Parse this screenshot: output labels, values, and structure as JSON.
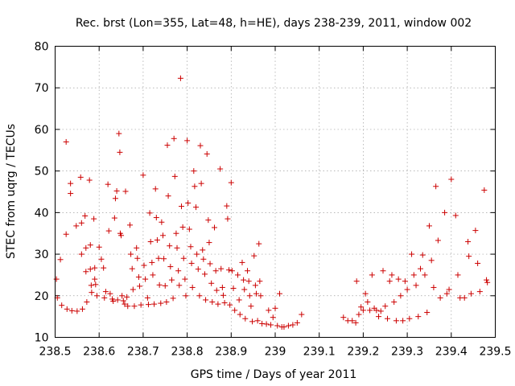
{
  "chart_data": {
    "type": "scatter",
    "title": "Rec. brst (Lon=355, Lat=48, h=HE), days 238-239, 2011, window 002",
    "xlabel": "GPS time / Days of year 2011",
    "ylabel": "STEC from uqrg / TECUs",
    "xlim": [
      238.5,
      239.5
    ],
    "ylim": [
      10,
      80
    ],
    "x_ticks": [
      "238.5",
      "238.6",
      "238.7",
      "238.8",
      "238.9",
      "239",
      "239.1",
      "239.2",
      "239.3",
      "239.4",
      "239.5"
    ],
    "y_ticks": [
      "10",
      "20",
      "30",
      "40",
      "50",
      "60",
      "70",
      "80"
    ],
    "grid": true,
    "marker": "+",
    "color": "#cc0000",
    "series": [
      {
        "name": "STEC",
        "points": [
          [
            238.503,
            24.0
          ],
          [
            238.505,
            19.5
          ],
          [
            238.512,
            28.7
          ],
          [
            238.515,
            17.7
          ],
          [
            238.525,
            57.0
          ],
          [
            238.525,
            34.8
          ],
          [
            238.527,
            16.8
          ],
          [
            238.535,
            47.0
          ],
          [
            238.535,
            44.6
          ],
          [
            238.538,
            16.4
          ],
          [
            238.548,
            36.8
          ],
          [
            238.55,
            16.3
          ],
          [
            238.558,
            48.5
          ],
          [
            238.56,
            37.5
          ],
          [
            238.56,
            30.0
          ],
          [
            238.562,
            16.8
          ],
          [
            238.568,
            39.2
          ],
          [
            238.57,
            31.5
          ],
          [
            238.57,
            25.8
          ],
          [
            238.572,
            18.5
          ],
          [
            238.578,
            47.8
          ],
          [
            238.58,
            32.2
          ],
          [
            238.58,
            26.4
          ],
          [
            238.582,
            22.5
          ],
          [
            238.583,
            20.8
          ],
          [
            238.588,
            38.5
          ],
          [
            238.59,
            26.7
          ],
          [
            238.59,
            24.0
          ],
          [
            238.592,
            22.7
          ],
          [
            238.595,
            20.0
          ],
          [
            238.6,
            31.7
          ],
          [
            238.605,
            28.8
          ],
          [
            238.61,
            26.7
          ],
          [
            238.612,
            19.5
          ],
          [
            238.615,
            21.0
          ],
          [
            238.62,
            46.8
          ],
          [
            238.622,
            35.6
          ],
          [
            238.625,
            20.5
          ],
          [
            238.63,
            19.2
          ],
          [
            238.632,
            18.7
          ],
          [
            238.635,
            38.7
          ],
          [
            238.637,
            43.4
          ],
          [
            238.64,
            45.2
          ],
          [
            238.642,
            19.0
          ],
          [
            238.645,
            59.0
          ],
          [
            238.647,
            54.5
          ],
          [
            238.648,
            35.0
          ],
          [
            238.65,
            34.5
          ],
          [
            238.652,
            20.0
          ],
          [
            238.655,
            18.8
          ],
          [
            238.658,
            18.0
          ],
          [
            238.66,
            45.1
          ],
          [
            238.663,
            19.7
          ],
          [
            238.665,
            17.5
          ],
          [
            238.67,
            37.0
          ],
          [
            238.672,
            30.0
          ],
          [
            238.675,
            26.5
          ],
          [
            238.677,
            21.5
          ],
          [
            238.68,
            17.5
          ],
          [
            238.685,
            31.5
          ],
          [
            238.687,
            29.0
          ],
          [
            238.69,
            24.5
          ],
          [
            238.692,
            22.3
          ],
          [
            238.695,
            17.8
          ],
          [
            238.7,
            49.0
          ],
          [
            238.702,
            27.3
          ],
          [
            238.705,
            24.0
          ],
          [
            238.71,
            19.5
          ],
          [
            238.712,
            17.9
          ],
          [
            238.715,
            39.9
          ],
          [
            238.717,
            33.0
          ],
          [
            238.72,
            28.0
          ],
          [
            238.722,
            25.0
          ],
          [
            238.725,
            18.0
          ],
          [
            238.728,
            45.7
          ],
          [
            238.73,
            38.8
          ],
          [
            238.732,
            33.4
          ],
          [
            238.735,
            29.0
          ],
          [
            238.737,
            22.6
          ],
          [
            238.74,
            18.2
          ],
          [
            238.742,
            37.7
          ],
          [
            238.745,
            34.5
          ],
          [
            238.747,
            28.9
          ],
          [
            238.75,
            22.4
          ],
          [
            238.753,
            18.5
          ],
          [
            238.755,
            56.2
          ],
          [
            238.757,
            44.0
          ],
          [
            238.76,
            32.0
          ],
          [
            238.762,
            27.0
          ],
          [
            238.765,
            23.8
          ],
          [
            238.768,
            19.4
          ],
          [
            238.77,
            57.8
          ],
          [
            238.772,
            48.7
          ],
          [
            238.775,
            35.0
          ],
          [
            238.777,
            31.5
          ],
          [
            238.78,
            26.0
          ],
          [
            238.782,
            22.5
          ],
          [
            238.785,
            72.3
          ],
          [
            238.787,
            41.5
          ],
          [
            238.79,
            36.5
          ],
          [
            238.792,
            29.0
          ],
          [
            238.795,
            24.0
          ],
          [
            238.797,
            20.0
          ],
          [
            238.8,
            57.3
          ],
          [
            238.802,
            42.3
          ],
          [
            238.805,
            36.0
          ],
          [
            238.808,
            31.8
          ],
          [
            238.81,
            27.8
          ],
          [
            238.812,
            22.0
          ],
          [
            238.815,
            50.0
          ],
          [
            238.817,
            46.3
          ],
          [
            238.82,
            41.3
          ],
          [
            238.822,
            30.0
          ],
          [
            238.825,
            26.4
          ],
          [
            238.828,
            20.0
          ],
          [
            238.83,
            56.1
          ],
          [
            238.832,
            47.0
          ],
          [
            238.835,
            31.0
          ],
          [
            238.837,
            28.8
          ],
          [
            238.84,
            25.2
          ],
          [
            238.842,
            19.0
          ],
          [
            238.845,
            54.1
          ],
          [
            238.848,
            38.2
          ],
          [
            238.85,
            32.8
          ],
          [
            238.852,
            27.7
          ],
          [
            238.855,
            23.0
          ],
          [
            238.857,
            18.5
          ],
          [
            238.862,
            36.4
          ],
          [
            238.865,
            26.0
          ],
          [
            238.867,
            21.3
          ],
          [
            238.87,
            18.0
          ],
          [
            238.875,
            50.5
          ],
          [
            238.877,
            26.5
          ],
          [
            238.88,
            22.0
          ],
          [
            238.882,
            20.1
          ],
          [
            238.885,
            18.3
          ],
          [
            238.89,
            41.6
          ],
          [
            238.892,
            38.5
          ],
          [
            238.895,
            26.2
          ],
          [
            238.897,
            17.8
          ],
          [
            238.9,
            47.2
          ],
          [
            238.902,
            26.0
          ],
          [
            238.905,
            21.8
          ],
          [
            238.908,
            16.5
          ],
          [
            238.915,
            25.0
          ],
          [
            238.918,
            19.0
          ],
          [
            238.92,
            15.5
          ],
          [
            238.925,
            28.0
          ],
          [
            238.928,
            23.8
          ],
          [
            238.93,
            21.5
          ],
          [
            238.932,
            14.5
          ],
          [
            238.937,
            26.0
          ],
          [
            238.94,
            23.5
          ],
          [
            238.942,
            20.0
          ],
          [
            238.945,
            17.5
          ],
          [
            238.948,
            13.8
          ],
          [
            238.952,
            29.6
          ],
          [
            238.955,
            22.5
          ],
          [
            238.957,
            20.5
          ],
          [
            238.96,
            14.0
          ],
          [
            238.963,
            32.5
          ],
          [
            238.965,
            23.5
          ],
          [
            238.967,
            20.0
          ],
          [
            238.97,
            13.3
          ],
          [
            238.98,
            13.2
          ],
          [
            238.985,
            16.5
          ],
          [
            238.99,
            13.0
          ],
          [
            238.995,
            14.8
          ],
          [
            239.0,
            17.0
          ],
          [
            239.005,
            12.8
          ],
          [
            239.01,
            20.5
          ],
          [
            239.015,
            12.5
          ],
          [
            239.02,
            12.5
          ],
          [
            239.03,
            12.8
          ],
          [
            239.04,
            13.0
          ],
          [
            239.05,
            13.5
          ],
          [
            239.06,
            15.5
          ],
          [
            239.155,
            14.8
          ],
          [
            239.165,
            14.0
          ],
          [
            239.175,
            14.0
          ],
          [
            239.183,
            13.5
          ],
          [
            239.185,
            23.5
          ],
          [
            239.19,
            15.5
          ],
          [
            239.195,
            17.3
          ],
          [
            239.2,
            16.5
          ],
          [
            239.205,
            20.5
          ],
          [
            239.21,
            18.5
          ],
          [
            239.215,
            16.5
          ],
          [
            239.22,
            25.0
          ],
          [
            239.225,
            17.0
          ],
          [
            239.23,
            16.5
          ],
          [
            239.235,
            15.0
          ],
          [
            239.24,
            16.3
          ],
          [
            239.245,
            26.0
          ],
          [
            239.25,
            17.5
          ],
          [
            239.255,
            14.5
          ],
          [
            239.26,
            23.5
          ],
          [
            239.265,
            25.0
          ],
          [
            239.27,
            18.5
          ],
          [
            239.275,
            14.0
          ],
          [
            239.28,
            24.0
          ],
          [
            239.285,
            20.0
          ],
          [
            239.29,
            14.0
          ],
          [
            239.295,
            23.5
          ],
          [
            239.3,
            21.5
          ],
          [
            239.305,
            14.5
          ],
          [
            239.31,
            30.0
          ],
          [
            239.315,
            25.0
          ],
          [
            239.32,
            22.5
          ],
          [
            239.325,
            15.0
          ],
          [
            239.33,
            26.5
          ],
          [
            239.335,
            29.8
          ],
          [
            239.34,
            25.0
          ],
          [
            239.345,
            16.0
          ],
          [
            239.35,
            36.8
          ],
          [
            239.355,
            28.5
          ],
          [
            239.36,
            22.0
          ],
          [
            239.365,
            46.3
          ],
          [
            239.37,
            33.3
          ],
          [
            239.375,
            19.5
          ],
          [
            239.385,
            40.0
          ],
          [
            239.39,
            20.5
          ],
          [
            239.395,
            21.5
          ],
          [
            239.4,
            48.0
          ],
          [
            239.41,
            39.3
          ],
          [
            239.415,
            25.0
          ],
          [
            239.42,
            19.5
          ],
          [
            239.43,
            19.5
          ],
          [
            239.438,
            33.0
          ],
          [
            239.44,
            29.5
          ],
          [
            239.445,
            20.5
          ],
          [
            239.455,
            35.7
          ],
          [
            239.46,
            27.8
          ],
          [
            239.465,
            21.0
          ],
          [
            239.475,
            45.4
          ],
          [
            239.48,
            23.8
          ],
          [
            239.482,
            23.2
          ]
        ]
      }
    ]
  }
}
